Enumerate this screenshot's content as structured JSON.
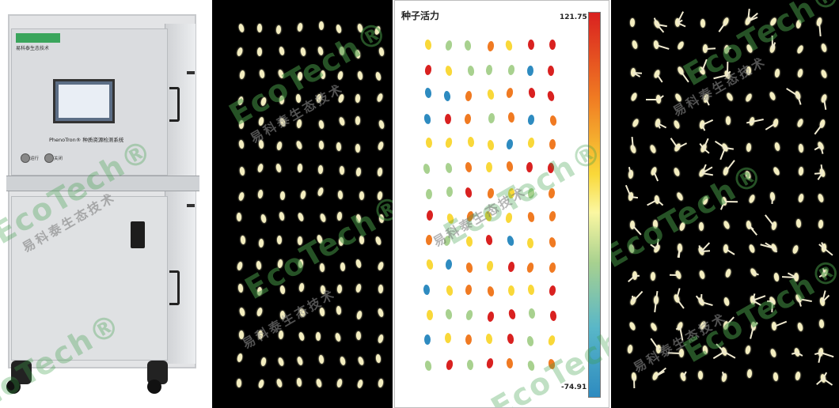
{
  "cabinet": {
    "brand_line": "易科泰生态技术",
    "system_title": "PhenoTron® 种质资源检测系统",
    "button_left": "运行",
    "button_right": "关闭"
  },
  "heatmap": {
    "title": "种子活力",
    "colorbar_max": "121.75",
    "colorbar_min": "-74.91",
    "colors": {
      "high": "#d92120",
      "mid_high": "#f07a22",
      "mid": "#f9d839",
      "low_mid": "#a8d18f",
      "low": "#2e8bc0"
    }
  },
  "watermark": {
    "brand": "EcoTech®",
    "chinese": "易科泰生态技术"
  }
}
